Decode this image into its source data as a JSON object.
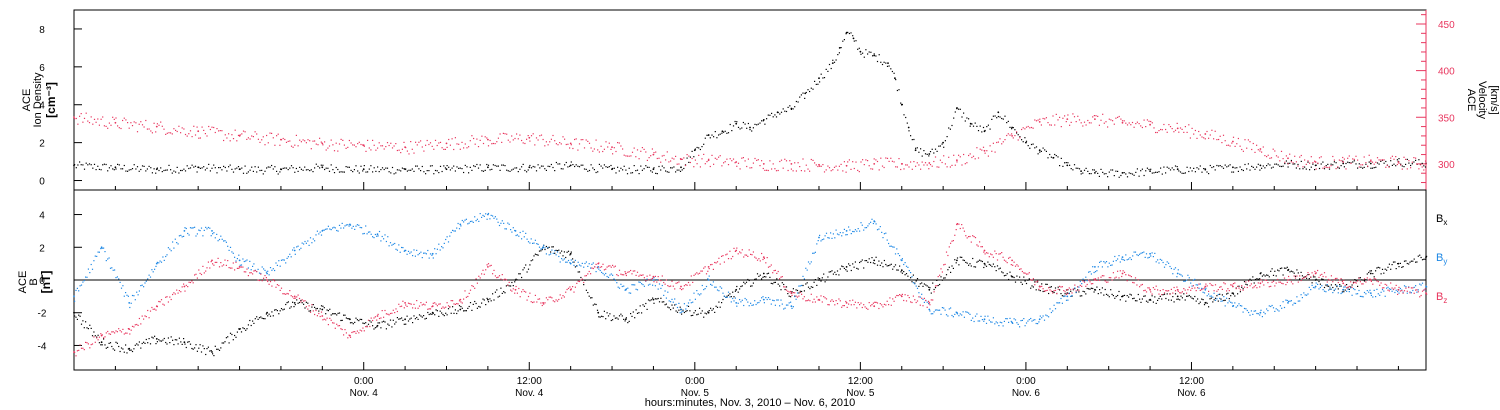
{
  "figure": {
    "xlabel": "hours:minutes, Nov.  3, 2010 – Nov.  6, 2010"
  },
  "time_ticks": [
    {
      "time": "0:00",
      "date": "Nov. 4",
      "hours": 21
    },
    {
      "time": "12:00",
      "date": "Nov. 4",
      "hours": 33
    },
    {
      "time": "0:00",
      "date": "Nov. 5",
      "hours": 45
    },
    {
      "time": "12:00",
      "date": "Nov. 5",
      "hours": 57
    },
    {
      "time": "0:00",
      "date": "Nov. 6",
      "hours": 69
    },
    {
      "time": "12:00",
      "date": "Nov. 6",
      "hours": 81
    }
  ],
  "chart_data": [
    {
      "type": "scatter",
      "panel": "top",
      "ylabel_lines": [
        "ACE",
        "Ion Density",
        "[cm⁻³]"
      ],
      "ylabel2_lines": [
        "ACE",
        "Velocity",
        "[km/s]"
      ],
      "x_unit": "hours after 2010-11-03 03:00 UT",
      "xlim": [
        0,
        98
      ],
      "ylim": [
        -0.5,
        9
      ],
      "y_ticks": [
        0,
        2,
        4,
        6,
        8
      ],
      "y2lim": [
        272,
        465
      ],
      "y2_ticks": [
        300,
        350,
        400,
        450
      ],
      "series": [
        {
          "axis": "left",
          "color": "#000000",
          "points": [
            [
              0,
              0.8
            ],
            [
              3,
              0.7
            ],
            [
              6,
              0.6
            ],
            [
              9,
              0.7
            ],
            [
              12,
              0.6
            ],
            [
              15,
              0.6
            ],
            [
              18,
              0.7
            ],
            [
              21,
              0.6
            ],
            [
              24,
              0.6
            ],
            [
              27,
              0.6
            ],
            [
              30,
              0.7
            ],
            [
              33,
              0.7
            ],
            [
              36,
              0.8
            ],
            [
              39,
              0.6
            ],
            [
              42,
              0.6
            ],
            [
              44,
              0.7
            ],
            [
              45,
              1.6
            ],
            [
              46,
              2.4
            ],
            [
              47,
              2.6
            ],
            [
              48,
              3.0
            ],
            [
              49,
              2.8
            ],
            [
              50,
              3.2
            ],
            [
              51,
              3.6
            ],
            [
              52,
              3.8
            ],
            [
              53,
              4.6
            ],
            [
              54,
              5.4
            ],
            [
              55,
              6.2
            ],
            [
              55.5,
              7.0
            ],
            [
              56,
              7.8
            ],
            [
              56.5,
              7.5
            ],
            [
              57,
              6.8
            ],
            [
              58,
              6.6
            ],
            [
              59,
              6.2
            ],
            [
              59.5,
              5.4
            ],
            [
              60,
              4.0
            ],
            [
              60.5,
              2.8
            ],
            [
              61,
              1.6
            ],
            [
              62,
              1.4
            ],
            [
              63,
              2.0
            ],
            [
              64,
              3.8
            ],
            [
              65,
              3.0
            ],
            [
              66,
              2.6
            ],
            [
              67,
              3.6
            ],
            [
              68,
              2.8
            ],
            [
              69,
              2.0
            ],
            [
              70,
              1.6
            ],
            [
              71,
              1.2
            ],
            [
              72,
              0.8
            ],
            [
              73,
              0.5
            ],
            [
              74,
              0.4
            ],
            [
              76,
              0.4
            ],
            [
              78,
              0.5
            ],
            [
              80,
              0.6
            ],
            [
              82,
              0.6
            ],
            [
              84,
              0.7
            ],
            [
              86,
              0.8
            ],
            [
              88,
              0.9
            ],
            [
              90,
              0.8
            ],
            [
              92,
              0.9
            ],
            [
              94,
              0.9
            ],
            [
              96,
              1.0
            ],
            [
              98,
              0.9
            ]
          ]
        },
        {
          "axis": "right",
          "color": "#e8365e",
          "points": [
            [
              0,
              350
            ],
            [
              3,
              344
            ],
            [
              6,
              340
            ],
            [
              9,
              335
            ],
            [
              12,
              330
            ],
            [
              15,
              326
            ],
            [
              18,
              322
            ],
            [
              21,
              320
            ],
            [
              24,
              318
            ],
            [
              27,
              322
            ],
            [
              30,
              326
            ],
            [
              33,
              328
            ],
            [
              36,
              322
            ],
            [
              39,
              318
            ],
            [
              42,
              310
            ],
            [
              44,
              305
            ],
            [
              46,
              304
            ],
            [
              48,
              302
            ],
            [
              50,
              300
            ],
            [
              52,
              300
            ],
            [
              54,
              299
            ],
            [
              56,
              298
            ],
            [
              58,
              300
            ],
            [
              60,
              300
            ],
            [
              62,
              301
            ],
            [
              64,
              304
            ],
            [
              66,
              314
            ],
            [
              68,
              330
            ],
            [
              70,
              345
            ],
            [
              72,
              348
            ],
            [
              74,
              348
            ],
            [
              76,
              344
            ],
            [
              78,
              342
            ],
            [
              80,
              338
            ],
            [
              82,
              332
            ],
            [
              84,
              324
            ],
            [
              86,
              316
            ],
            [
              88,
              306
            ],
            [
              90,
              302
            ],
            [
              92,
              302
            ],
            [
              94,
              303
            ],
            [
              96,
              302
            ],
            [
              98,
              300
            ]
          ]
        }
      ]
    },
    {
      "type": "scatter",
      "panel": "bottom",
      "ylabel_lines": [
        "ACE",
        "B",
        "[nT]"
      ],
      "xlim": [
        0,
        98
      ],
      "ylim": [
        -5.5,
        5.5
      ],
      "y_ticks": [
        -4,
        -2,
        0,
        2,
        4
      ],
      "series": [
        {
          "name": "B",
          "name_sub": "x",
          "color": "#000000",
          "points": [
            [
              0,
              -2.0
            ],
            [
              2,
              -3.8
            ],
            [
              4,
              -4.2
            ],
            [
              6,
              -3.6
            ],
            [
              8,
              -3.8
            ],
            [
              10,
              -4.4
            ],
            [
              12,
              -3.0
            ],
            [
              14,
              -2.0
            ],
            [
              16,
              -1.4
            ],
            [
              18,
              -1.8
            ],
            [
              20,
              -2.4
            ],
            [
              22,
              -2.8
            ],
            [
              24,
              -2.4
            ],
            [
              26,
              -2.0
            ],
            [
              28,
              -1.8
            ],
            [
              30,
              -1.2
            ],
            [
              32,
              0.0
            ],
            [
              34,
              2.0
            ],
            [
              36,
              1.6
            ],
            [
              38,
              -2.0
            ],
            [
              40,
              -2.4
            ],
            [
              42,
              -1.2
            ],
            [
              44,
              -1.8
            ],
            [
              46,
              -2.0
            ],
            [
              48,
              -0.6
            ],
            [
              50,
              0.4
            ],
            [
              52,
              -0.8
            ],
            [
              54,
              0.0
            ],
            [
              56,
              0.8
            ],
            [
              58,
              1.2
            ],
            [
              60,
              0.6
            ],
            [
              62,
              -0.6
            ],
            [
              64,
              1.2
            ],
            [
              66,
              1.0
            ],
            [
              68,
              0.2
            ],
            [
              70,
              -0.4
            ],
            [
              72,
              -0.8
            ],
            [
              74,
              -0.6
            ],
            [
              76,
              -1.0
            ],
            [
              78,
              -1.2
            ],
            [
              80,
              -1.0
            ],
            [
              82,
              -1.4
            ],
            [
              84,
              -0.8
            ],
            [
              86,
              0.4
            ],
            [
              88,
              0.6
            ],
            [
              90,
              0.0
            ],
            [
              92,
              -0.6
            ],
            [
              94,
              0.4
            ],
            [
              96,
              1.0
            ],
            [
              98,
              1.4
            ]
          ]
        },
        {
          "name": "B",
          "name_sub": "y",
          "color": "#1e88e5",
          "points": [
            [
              0,
              -1.0
            ],
            [
              2,
              2.0
            ],
            [
              4,
              -1.4
            ],
            [
              6,
              1.0
            ],
            [
              8,
              3.0
            ],
            [
              10,
              3.0
            ],
            [
              12,
              1.2
            ],
            [
              14,
              0.4
            ],
            [
              16,
              1.8
            ],
            [
              18,
              3.0
            ],
            [
              20,
              3.4
            ],
            [
              22,
              2.8
            ],
            [
              24,
              1.8
            ],
            [
              26,
              1.6
            ],
            [
              28,
              3.4
            ],
            [
              30,
              4.0
            ],
            [
              32,
              3.0
            ],
            [
              34,
              2.0
            ],
            [
              36,
              1.0
            ],
            [
              38,
              0.8
            ],
            [
              40,
              -0.6
            ],
            [
              42,
              0.0
            ],
            [
              44,
              -1.8
            ],
            [
              46,
              0.0
            ],
            [
              48,
              -1.4
            ],
            [
              50,
              -1.2
            ],
            [
              52,
              -1.6
            ],
            [
              54,
              2.6
            ],
            [
              56,
              3.0
            ],
            [
              58,
              3.6
            ],
            [
              60,
              1.2
            ],
            [
              62,
              -1.8
            ],
            [
              64,
              -2.0
            ],
            [
              66,
              -2.4
            ],
            [
              68,
              -2.6
            ],
            [
              70,
              -2.4
            ],
            [
              72,
              -1.0
            ],
            [
              74,
              0.8
            ],
            [
              76,
              1.4
            ],
            [
              78,
              1.6
            ],
            [
              80,
              0.4
            ],
            [
              82,
              -0.6
            ],
            [
              84,
              -1.6
            ],
            [
              86,
              -2.0
            ],
            [
              88,
              -1.4
            ],
            [
              90,
              -0.4
            ],
            [
              92,
              -0.6
            ],
            [
              94,
              -0.8
            ],
            [
              96,
              -0.6
            ],
            [
              98,
              -0.4
            ]
          ]
        },
        {
          "name": "B",
          "name_sub": "z",
          "color": "#e8365e",
          "points": [
            [
              0,
              -4.4
            ],
            [
              2,
              -3.4
            ],
            [
              4,
              -3.0
            ],
            [
              6,
              -1.6
            ],
            [
              8,
              -0.4
            ],
            [
              10,
              1.2
            ],
            [
              12,
              0.8
            ],
            [
              14,
              0.0
            ],
            [
              16,
              -1.0
            ],
            [
              18,
              -2.2
            ],
            [
              20,
              -3.4
            ],
            [
              22,
              -2.2
            ],
            [
              24,
              -1.4
            ],
            [
              26,
              -1.6
            ],
            [
              28,
              -1.2
            ],
            [
              30,
              0.8
            ],
            [
              32,
              -0.6
            ],
            [
              34,
              -1.4
            ],
            [
              36,
              -0.6
            ],
            [
              38,
              1.0
            ],
            [
              40,
              0.4
            ],
            [
              42,
              0.2
            ],
            [
              44,
              -0.4
            ],
            [
              46,
              0.8
            ],
            [
              48,
              1.8
            ],
            [
              50,
              1.4
            ],
            [
              52,
              -0.8
            ],
            [
              54,
              -1.2
            ],
            [
              56,
              -1.4
            ],
            [
              58,
              -1.6
            ],
            [
              60,
              -1.0
            ],
            [
              62,
              -1.4
            ],
            [
              64,
              3.4
            ],
            [
              66,
              1.8
            ],
            [
              68,
              1.2
            ],
            [
              70,
              -0.4
            ],
            [
              72,
              -0.6
            ],
            [
              74,
              0.0
            ],
            [
              76,
              0.4
            ],
            [
              78,
              -0.6
            ],
            [
              80,
              -0.6
            ],
            [
              82,
              -0.4
            ],
            [
              84,
              -0.4
            ],
            [
              86,
              -0.2
            ],
            [
              88,
              0.0
            ],
            [
              90,
              0.4
            ],
            [
              92,
              -0.2
            ],
            [
              94,
              0.0
            ],
            [
              96,
              -0.6
            ],
            [
              98,
              -0.8
            ]
          ]
        }
      ]
    }
  ]
}
